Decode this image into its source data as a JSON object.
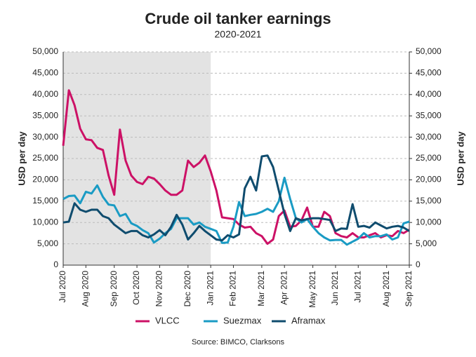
{
  "chart_data": {
    "type": "line",
    "title": "Crude oil tanker earnings",
    "subtitle": "2020-2021",
    "y_label": "USD per day",
    "y2_label": "USD per day",
    "source": "Source: BIMCO, Clarksons",
    "categories": [
      "Jul 2020",
      null,
      null,
      null,
      "Aug 2020",
      null,
      null,
      null,
      null,
      "Sep 2020",
      null,
      null,
      null,
      "Oct 2020",
      null,
      null,
      null,
      "Nov 2020",
      null,
      null,
      null,
      null,
      "Dec 2020",
      null,
      null,
      null,
      "Jan 2021",
      null,
      null,
      null,
      "Feb 2021",
      null,
      null,
      null,
      null,
      "Mar 2021",
      null,
      null,
      null,
      "Apr 2021",
      null,
      null,
      null,
      null,
      "May 2021",
      null,
      null,
      null,
      "Jun 2021",
      null,
      null,
      null,
      "Jul 2021",
      null,
      null,
      null,
      null,
      "Aug 2021",
      null,
      null,
      null,
      "Sep 2021"
    ],
    "series": [
      {
        "name": "VLCC",
        "color": "#cc1166",
        "values": [
          28000,
          41000,
          37500,
          32000,
          29500,
          29300,
          27500,
          27000,
          21000,
          16500,
          31800,
          24500,
          21000,
          19500,
          19000,
          20700,
          20300,
          19000,
          17500,
          16500,
          16500,
          17500,
          24500,
          23000,
          24000,
          25700,
          22000,
          17500,
          11200,
          11000,
          10800,
          9500,
          8800,
          9000,
          7500,
          6800,
          5000,
          6000,
          11500,
          12800,
          9000,
          9200,
          10500,
          13500,
          9000,
          9000,
          12500,
          11500,
          7500,
          6800,
          6500,
          7500,
          6500,
          6500,
          7000,
          7500,
          6500,
          7000,
          6800,
          8000,
          7500,
          8300
        ]
      },
      {
        "name": "Suezmax",
        "color": "#1a9bc4",
        "values": [
          15500,
          16200,
          16300,
          14500,
          17200,
          16800,
          18700,
          16000,
          14200,
          14000,
          11500,
          12000,
          9800,
          9200,
          8200,
          7500,
          5300,
          6200,
          7500,
          8500,
          11000,
          11000,
          11000,
          9500,
          10000,
          9000,
          8500,
          8000,
          5200,
          5300,
          9000,
          14800,
          11500,
          11800,
          12000,
          12500,
          13200,
          12500,
          15000,
          20500,
          15500,
          11000,
          10000,
          10800,
          9000,
          7500,
          6500,
          5800,
          5900,
          5900,
          4800,
          5500,
          6200,
          7500,
          6500,
          6800,
          6800,
          7200,
          6000,
          6500,
          9800,
          10200
        ]
      },
      {
        "name": "Aframax",
        "color": "#0f4c6e",
        "values": [
          10000,
          10200,
          14500,
          13000,
          12500,
          13000,
          13000,
          11500,
          11000,
          9500,
          8500,
          7500,
          8000,
          8000,
          7000,
          6500,
          7200,
          8200,
          7000,
          9000,
          11800,
          9500,
          6000,
          7500,
          9200,
          8000,
          7000,
          6000,
          5800,
          7000,
          6500,
          7200,
          18000,
          20700,
          17500,
          25500,
          25700,
          23000,
          17500,
          12000,
          8000,
          11000,
          10500,
          10800,
          11000,
          11000,
          10800,
          10600,
          8000,
          8600,
          8500,
          14300,
          9000,
          9200,
          8800,
          10000,
          9300,
          8600,
          9000,
          9200,
          8800,
          8000
        ]
      }
    ],
    "ylim": [
      0,
      50000
    ],
    "yticks": [
      0,
      {
        "value": 5000,
        "label": "5,000"
      },
      {
        "value": 10000,
        "label": "10,000"
      },
      {
        "value": 15000,
        "label": "15,000"
      },
      {
        "value": 20000,
        "label": "20,000"
      },
      {
        "value": 25000,
        "label": "25,000"
      },
      {
        "value": 30000,
        "label": "30,000"
      },
      {
        "value": 35000,
        "label": "35,000"
      },
      {
        "value": 40000,
        "label": "40,000"
      },
      {
        "value": 45000,
        "label": "45,000"
      },
      {
        "value": 50000,
        "label": "50,000"
      }
    ],
    "y2lim": [
      0,
      50000
    ],
    "y2ticks": [
      0,
      {
        "value": 5000,
        "label": "5,000"
      },
      {
        "value": 10000,
        "label": "10,000"
      },
      {
        "value": 15000,
        "label": "15,000"
      },
      {
        "value": 20000,
        "label": "20,000"
      },
      {
        "value": 25000,
        "label": "25,000"
      },
      {
        "value": 30000,
        "label": "30,000"
      },
      {
        "value": 35000,
        "label": "35,000"
      },
      {
        "value": 40000,
        "label": "40,000"
      },
      {
        "value": 45000,
        "label": "45,000"
      },
      {
        "value": 50000,
        "label": "50,000"
      }
    ],
    "grid": true,
    "legend": "bottom"
  }
}
